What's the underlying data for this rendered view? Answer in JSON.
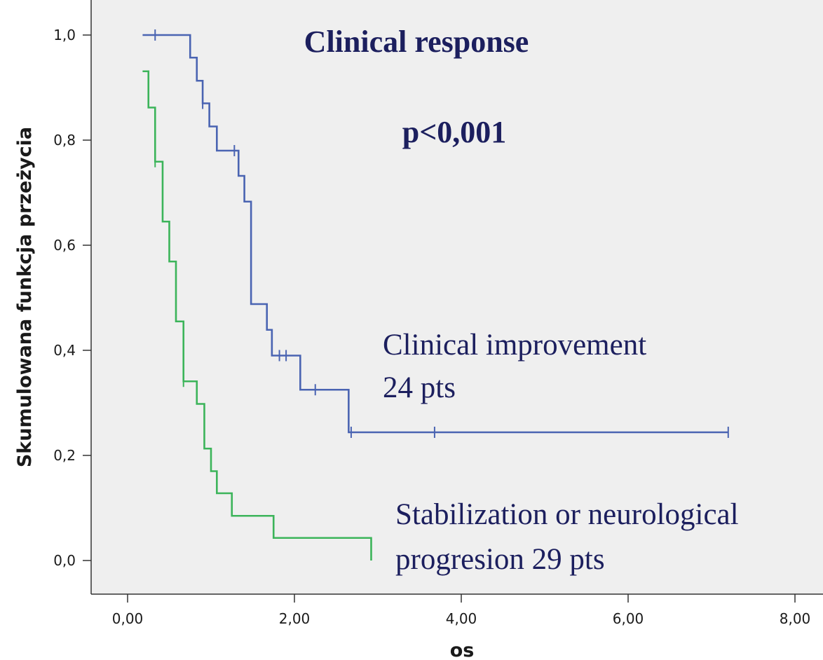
{
  "chart_data": {
    "type": "line",
    "step": true,
    "title": "Clinical response",
    "annotation": "p<0,001",
    "xlabel": "os",
    "ylabel": "Skumulowana funkcja przeżycia",
    "xlim": [
      0,
      8
    ],
    "ylim": [
      0,
      1
    ],
    "x_ticks": [
      {
        "value": 0,
        "label": "0,00"
      },
      {
        "value": 2,
        "label": "2,00"
      },
      {
        "value": 4,
        "label": "4,00"
      },
      {
        "value": 6,
        "label": "6,00"
      },
      {
        "value": 8,
        "label": "8,00"
      }
    ],
    "y_ticks": [
      {
        "value": 0,
        "label": "0,0"
      },
      {
        "value": 0.2,
        "label": "0,2"
      },
      {
        "value": 0.4,
        "label": "0,4"
      },
      {
        "value": 0.6,
        "label": "0,6"
      },
      {
        "value": 0.8,
        "label": "0,8"
      },
      {
        "value": 1.0,
        "label": "1,0"
      }
    ],
    "grid": false,
    "background": "#efefef",
    "series": [
      {
        "label_lines": [
          "Clinical improvement",
          "24 pts"
        ],
        "color": "#4a64b2",
        "start_x": 0.18,
        "start_y": 1.0,
        "steps": [
          {
            "x": 0.75,
            "y": 0.957
          },
          {
            "x": 0.83,
            "y": 0.913
          },
          {
            "x": 0.9,
            "y": 0.87
          },
          {
            "x": 0.98,
            "y": 0.826
          },
          {
            "x": 1.07,
            "y": 0.78
          },
          {
            "x": 1.33,
            "y": 0.732
          },
          {
            "x": 1.4,
            "y": 0.683
          },
          {
            "x": 1.48,
            "y": 0.488
          },
          {
            "x": 1.67,
            "y": 0.439
          },
          {
            "x": 1.73,
            "y": 0.39
          },
          {
            "x": 2.07,
            "y": 0.325
          },
          {
            "x": 2.65,
            "y": 0.244
          }
        ],
        "end_x": 7.2,
        "censored": [
          {
            "x": 0.33,
            "y": 1.0
          },
          {
            "x": 0.9,
            "y": 0.87
          },
          {
            "x": 1.28,
            "y": 0.78
          },
          {
            "x": 1.82,
            "y": 0.39
          },
          {
            "x": 1.9,
            "y": 0.39
          },
          {
            "x": 2.25,
            "y": 0.325
          },
          {
            "x": 2.68,
            "y": 0.244
          },
          {
            "x": 3.68,
            "y": 0.244
          },
          {
            "x": 7.2,
            "y": 0.244
          }
        ]
      },
      {
        "label_lines": [
          "Stabilization or neurological",
          "progresion 29 pts"
        ],
        "color": "#3cb45a",
        "start_x": 0.18,
        "start_y": 0.931,
        "steps": [
          {
            "x": 0.25,
            "y": 0.862
          },
          {
            "x": 0.33,
            "y": 0.759
          },
          {
            "x": 0.42,
            "y": 0.645
          },
          {
            "x": 0.5,
            "y": 0.569
          },
          {
            "x": 0.58,
            "y": 0.455
          },
          {
            "x": 0.67,
            "y": 0.341
          },
          {
            "x": 0.83,
            "y": 0.298
          },
          {
            "x": 0.92,
            "y": 0.213
          },
          {
            "x": 1.0,
            "y": 0.17
          },
          {
            "x": 1.07,
            "y": 0.128
          },
          {
            "x": 1.25,
            "y": 0.085
          },
          {
            "x": 1.75,
            "y": 0.043
          },
          {
            "x": 2.92,
            "y": 0.0
          }
        ],
        "censored": [
          {
            "x": 0.33,
            "y": 0.759
          },
          {
            "x": 0.67,
            "y": 0.341
          }
        ]
      }
    ]
  }
}
